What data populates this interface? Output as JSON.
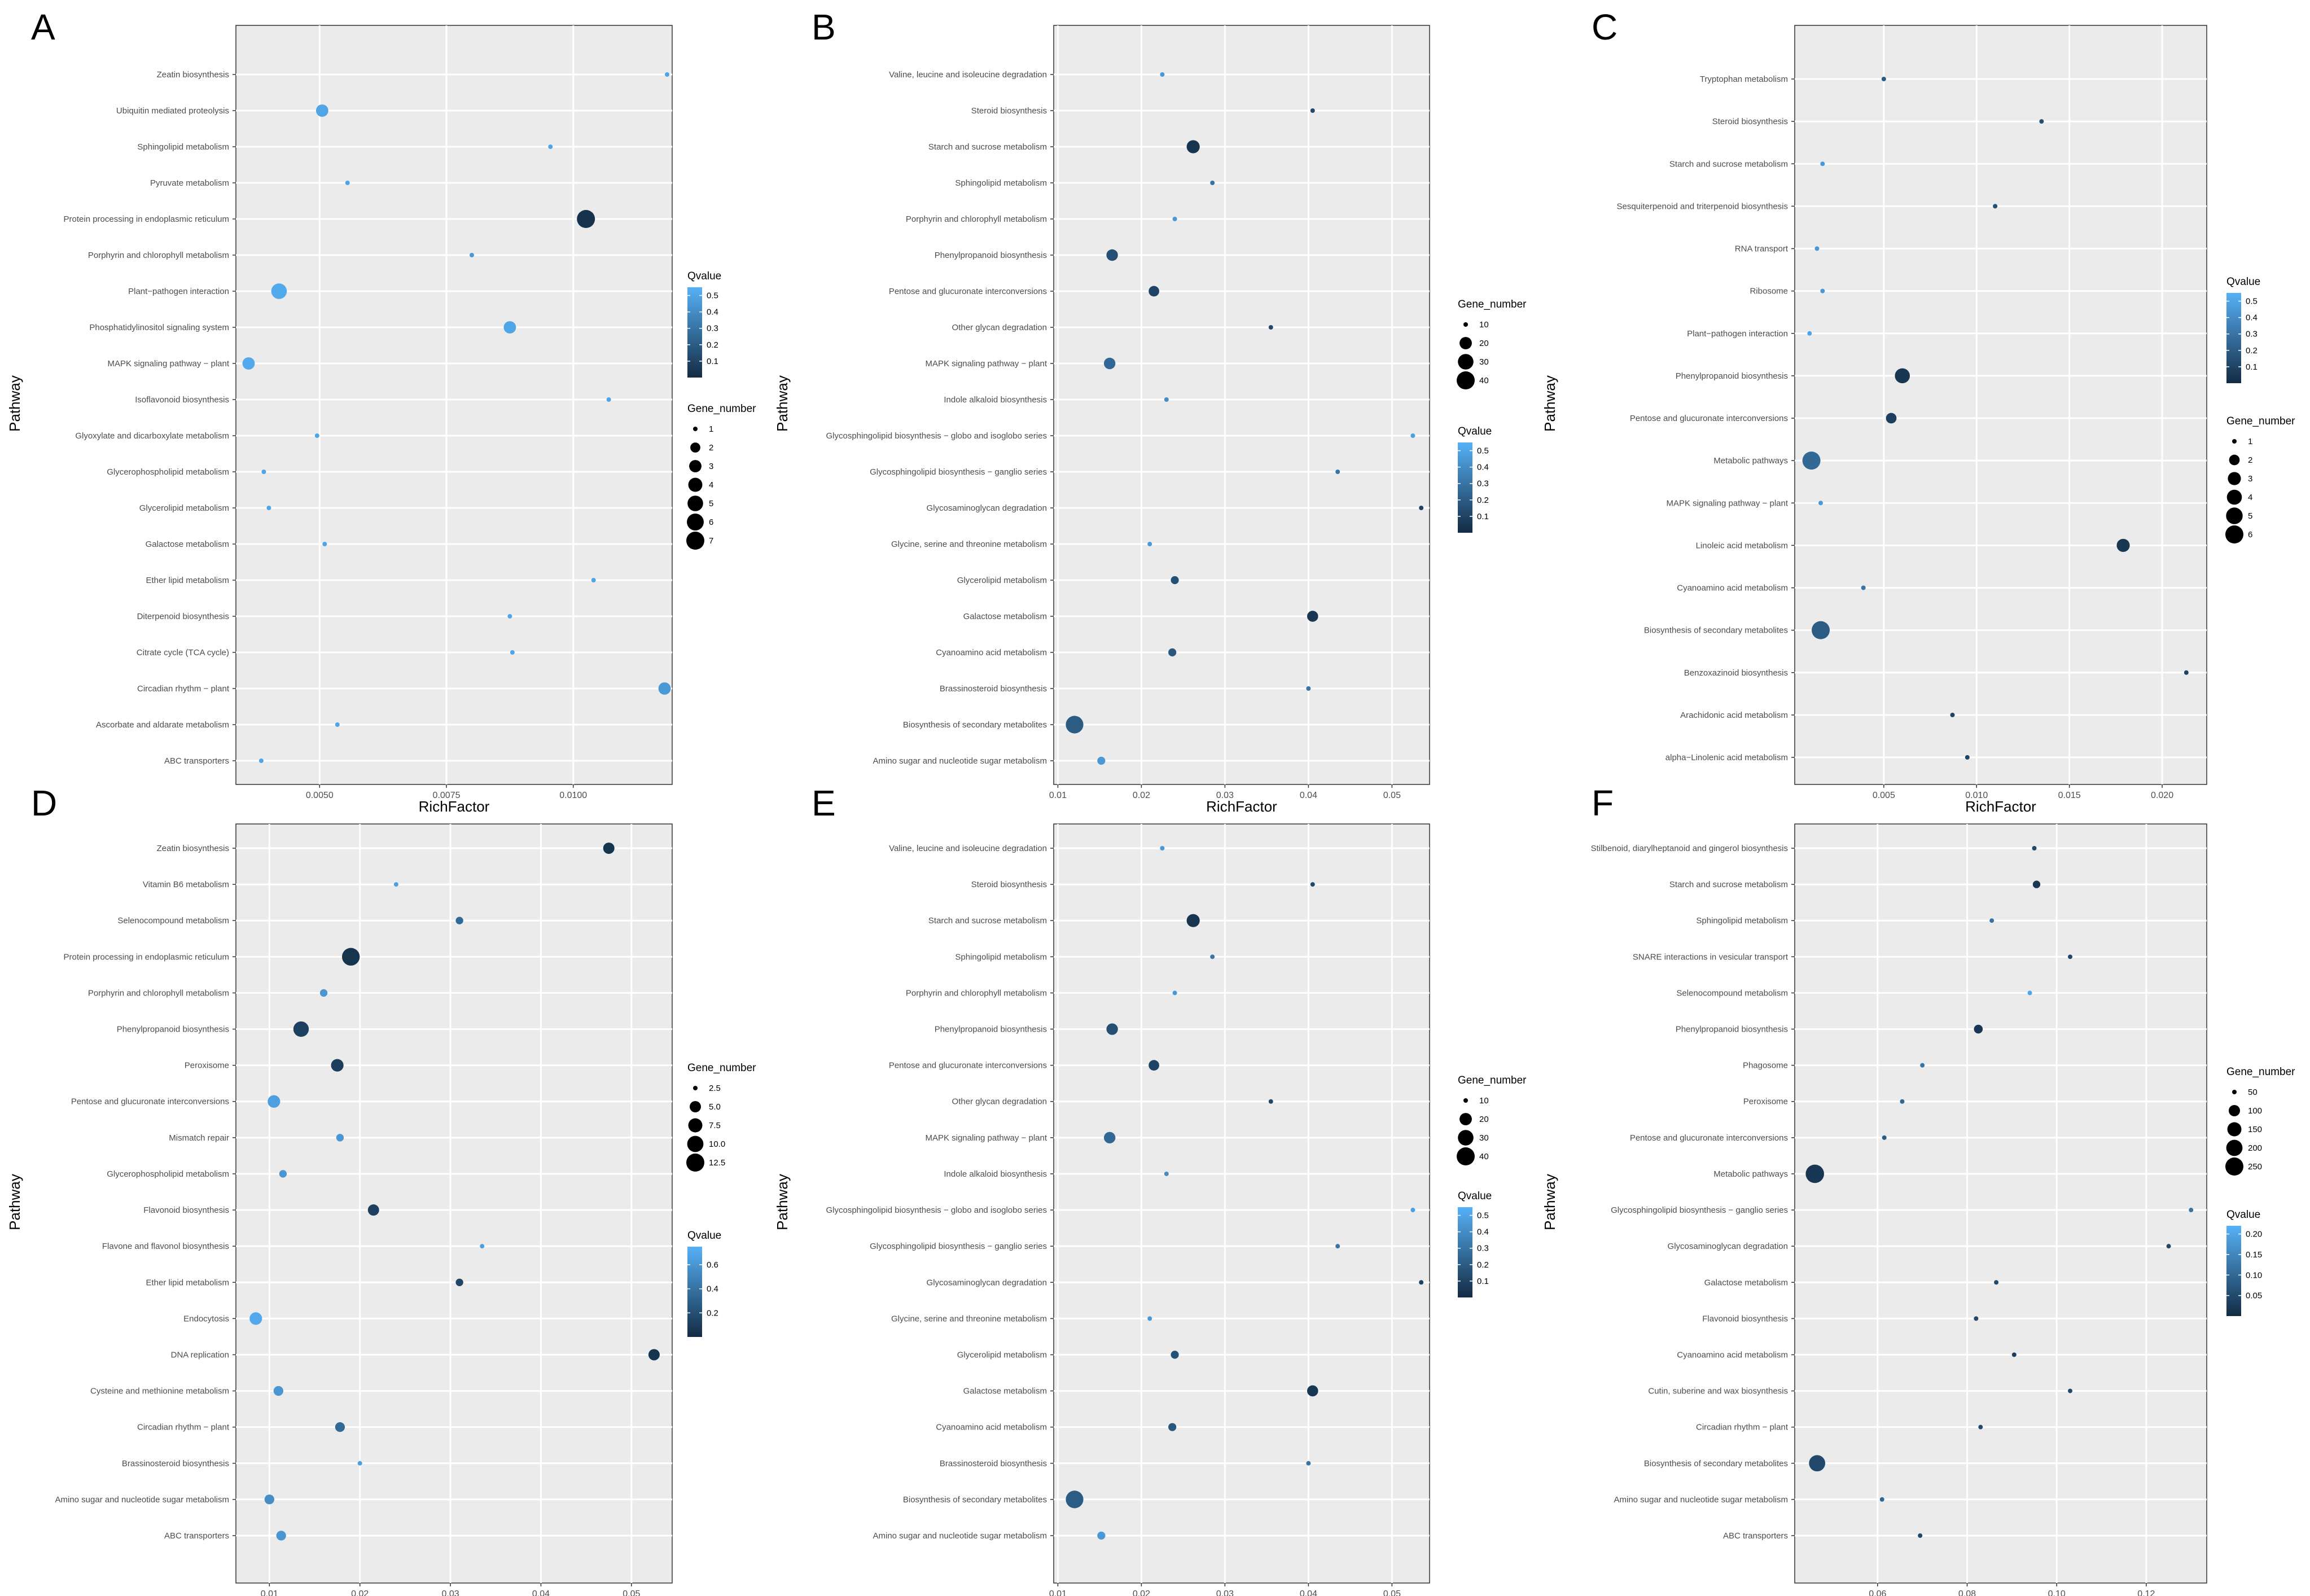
{
  "figure": {
    "panel_count": 6
  },
  "colors": {
    "panel_bg": "#EBEBEB",
    "grid": "#FFFFFF",
    "low": "#132B43",
    "high": "#56B1F7",
    "text": "#000000",
    "tick_text": "#4D4D4D"
  },
  "chart_data": [
    {
      "panel": "A",
      "type": "scatter",
      "xlabel": "RichFactor",
      "ylabel": "Pathway",
      "xlim": [
        0.00335,
        0.01195
      ],
      "xticks": [
        0.005,
        0.0075,
        0.01
      ],
      "xtick_labels": [
        "0.0050",
        "0.0075",
        "0.0100"
      ],
      "categories": [
        "Zeatin biosynthesis",
        "Ubiquitin mediated proteolysis",
        "Sphingolipid metabolism",
        "Pyruvate metabolism",
        "Protein processing in endoplasmic reticulum",
        "Porphyrin and chlorophyll metabolism",
        "Plant−pathogen interaction",
        "Phosphatidylinositol signaling system",
        "MAPK signaling pathway − plant",
        "Isoflavonoid biosynthesis",
        "Glyoxylate and dicarboxylate metabolism",
        "Glycerophospholipid metabolism",
        "Glycerolipid metabolism",
        "Galactose metabolism",
        "Ether lipid metabolism",
        "Diterpenoid biosynthesis",
        "Citrate cycle (TCA cycle)",
        "Circadian rhythm − plant",
        "Ascorbate and aldarate metabolism",
        "ABC transporters"
      ],
      "x": [
        0.01185,
        0.00505,
        0.00955,
        0.00555,
        0.01025,
        0.008,
        0.0042,
        0.00875,
        0.0036,
        0.0107,
        0.00495,
        0.0039,
        0.004,
        0.0051,
        0.0104,
        0.00875,
        0.0088,
        0.0118,
        0.00535,
        0.00385
      ],
      "gene_number": [
        1,
        3,
        1,
        1,
        7,
        1,
        5,
        3,
        3,
        1,
        1,
        1,
        1,
        1,
        1,
        1,
        1,
        3,
        1,
        1
      ],
      "qvalue": [
        0.5,
        0.5,
        0.5,
        0.5,
        0.03,
        0.45,
        0.52,
        0.5,
        0.52,
        0.5,
        0.5,
        0.5,
        0.5,
        0.5,
        0.5,
        0.5,
        0.5,
        0.45,
        0.5,
        0.5
      ],
      "legends": [
        {
          "kind": "color",
          "title": "Qvalue",
          "min": 0.0,
          "max": 0.55,
          "ticks": [
            0.1,
            0.2,
            0.3,
            0.4,
            0.5
          ],
          "tick_labels": [
            "0.1",
            "0.2",
            "0.3",
            "0.4",
            "0.5"
          ]
        },
        {
          "kind": "size",
          "title": "Gene_number",
          "values": [
            1,
            2,
            3,
            4,
            5,
            6,
            7
          ],
          "labels": [
            "1",
            "2",
            "3",
            "4",
            "5",
            "6",
            "7"
          ]
        }
      ]
    },
    {
      "panel": "B",
      "type": "scatter",
      "xlabel": "RichFactor",
      "ylabel": "Pathway",
      "xlim": [
        0.0095,
        0.0545
      ],
      "xticks": [
        0.01,
        0.02,
        0.03,
        0.04,
        0.05
      ],
      "xtick_labels": [
        "0.01",
        "0.02",
        "0.03",
        "0.04",
        "0.05"
      ],
      "categories": [
        "Valine, leucine and isoleucine degradation",
        "Steroid biosynthesis",
        "Starch and sucrose metabolism",
        "Sphingolipid metabolism",
        "Porphyrin and chlorophyll metabolism",
        "Phenylpropanoid biosynthesis",
        "Pentose and glucuronate interconversions",
        "Other glycan degradation",
        "MAPK signaling pathway − plant",
        "Indole alkaloid biosynthesis",
        "Glycosphingolipid biosynthesis − globo and isoglobo series",
        "Glycosphingolipid biosynthesis − ganglio series",
        "Glycosaminoglycan degradation",
        "Glycine, serine and threonine metabolism",
        "Glycerolipid metabolism",
        "Galactose metabolism",
        "Cyanoamino acid metabolism",
        "Brassinosteroid biosynthesis",
        "Biosynthesis of secondary metabolites",
        "Amino sugar and nucleotide sugar metabolism"
      ],
      "x": [
        0.0225,
        0.0405,
        0.0262,
        0.0285,
        0.024,
        0.0165,
        0.0215,
        0.0355,
        0.0162,
        0.023,
        0.0525,
        0.0435,
        0.0535,
        0.021,
        0.024,
        0.0405,
        0.0237,
        0.04,
        0.012,
        0.0152
      ],
      "gene_number": [
        8,
        8,
        22,
        7,
        6,
        18,
        16,
        10,
        18,
        8,
        2,
        4,
        6,
        7,
        12,
        17,
        12,
        7,
        38,
        12
      ],
      "qvalue": [
        0.45,
        0.12,
        0.04,
        0.3,
        0.45,
        0.15,
        0.1,
        0.12,
        0.25,
        0.4,
        0.48,
        0.3,
        0.1,
        0.45,
        0.15,
        0.05,
        0.18,
        0.3,
        0.2,
        0.45
      ],
      "legends": [
        {
          "kind": "size",
          "title": "Gene_number",
          "values": [
            10,
            20,
            30,
            40
          ],
          "labels": [
            "10",
            "20",
            "30",
            "40"
          ]
        },
        {
          "kind": "color",
          "title": "Qvalue",
          "min": 0.0,
          "max": 0.55,
          "ticks": [
            0.1,
            0.2,
            0.3,
            0.4,
            0.5
          ],
          "tick_labels": [
            "0.1",
            "0.2",
            "0.3",
            "0.4",
            "0.5"
          ]
        }
      ]
    },
    {
      "panel": "C",
      "type": "scatter",
      "xlabel": "RichFactor",
      "ylabel": "Pathway",
      "xlim": [
        0.0002,
        0.0224
      ],
      "xticks": [
        0.005,
        0.01,
        0.015,
        0.02
      ],
      "xtick_labels": [
        "0.005",
        "0.010",
        "0.015",
        "0.020"
      ],
      "categories": [
        "Tryptophan metabolism",
        "Steroid biosynthesis",
        "Starch and sucrose metabolism",
        "Sesquiterpenoid and triterpenoid biosynthesis",
        "RNA transport",
        "Ribosome",
        "Plant−pathogen interaction",
        "Phenylpropanoid biosynthesis",
        "Pentose and glucuronate interconversions",
        "Metabolic pathways",
        "MAPK signaling pathway − plant",
        "Linoleic acid metabolism",
        "Cyanoamino acid metabolism",
        "Biosynthesis of secondary metabolites",
        "Benzoxazinoid biosynthesis",
        "Arachidonic acid metabolism",
        "alpha−Linolenic acid metabolism"
      ],
      "x": [
        0.005,
        0.0135,
        0.0017,
        0.011,
        0.0014,
        0.0017,
        0.001,
        0.006,
        0.0054,
        0.0011,
        0.0016,
        0.0179,
        0.0039,
        0.0016,
        0.0213,
        0.0087,
        0.0095
      ],
      "gene_number": [
        1,
        1,
        1,
        1,
        1,
        1,
        1,
        4,
        2,
        6,
        1,
        3,
        1,
        6,
        1,
        1,
        1
      ],
      "qvalue": [
        0.2,
        0.15,
        0.45,
        0.15,
        0.45,
        0.45,
        0.5,
        0.05,
        0.08,
        0.25,
        0.45,
        0.05,
        0.3,
        0.2,
        0.1,
        0.1,
        0.1
      ],
      "legends": [
        {
          "kind": "color",
          "title": "Qvalue",
          "min": 0.0,
          "max": 0.55,
          "ticks": [
            0.1,
            0.2,
            0.3,
            0.4,
            0.5
          ],
          "tick_labels": [
            "0.1",
            "0.2",
            "0.3",
            "0.4",
            "0.5"
          ]
        },
        {
          "kind": "size",
          "title": "Gene_number",
          "values": [
            1,
            2,
            3,
            4,
            5,
            6
          ],
          "labels": [
            "1",
            "2",
            "3",
            "4",
            "5",
            "6"
          ]
        }
      ]
    },
    {
      "panel": "D",
      "type": "scatter",
      "xlabel": "RichFactor",
      "ylabel": "Pathway",
      "xlim": [
        0.0063,
        0.0545
      ],
      "xticks": [
        0.01,
        0.02,
        0.03,
        0.04,
        0.05
      ],
      "xtick_labels": [
        "0.01",
        "0.02",
        "0.03",
        "0.04",
        "0.05"
      ],
      "categories": [
        "Zeatin biosynthesis",
        "Vitamin B6 metabolism",
        "Selenocompound metabolism",
        "Protein processing in endoplasmic reticulum",
        "Porphyrin and chlorophyll metabolism",
        "Phenylpropanoid biosynthesis",
        "Peroxisome",
        "Pentose and glucuronate interconversions",
        "Mismatch repair",
        "Glycerophospholipid metabolism",
        "Flavonoid biosynthesis",
        "Flavone and flavonol biosynthesis",
        "Ether lipid metabolism",
        "Endocytosis",
        "DNA replication",
        "Cysteine and methionine metabolism",
        "Circadian rhythm − plant",
        "Brassinosteroid biosynthesis",
        "Amino sugar and nucleotide sugar metabolism",
        "ABC transporters"
      ],
      "x": [
        0.0475,
        0.024,
        0.031,
        0.019,
        0.016,
        0.0135,
        0.0175,
        0.0105,
        0.0178,
        0.0115,
        0.0215,
        0.0335,
        0.031,
        0.0085,
        0.0525,
        0.011,
        0.0178,
        0.02,
        0.01,
        0.0113
      ],
      "gene_number": [
        5,
        1,
        3,
        12,
        3,
        9,
        6,
        6,
        3,
        3,
        5,
        1,
        3,
        6,
        5,
        4,
        4,
        1,
        4,
        4
      ],
      "qvalue": [
        0.05,
        0.65,
        0.35,
        0.05,
        0.6,
        0.12,
        0.1,
        0.65,
        0.6,
        0.6,
        0.12,
        0.65,
        0.15,
        0.7,
        0.05,
        0.6,
        0.35,
        0.65,
        0.55,
        0.6
      ],
      "legends": [
        {
          "kind": "size",
          "title": "Gene_number",
          "values": [
            2.5,
            5,
            7.5,
            10,
            12.5
          ],
          "labels": [
            "2.5",
            "5.0",
            "7.5",
            "10.0",
            "12.5"
          ]
        },
        {
          "kind": "color",
          "title": "Qvalue",
          "min": 0.0,
          "max": 0.75,
          "ticks": [
            0.2,
            0.4,
            0.6
          ],
          "tick_labels": [
            "0.2",
            "0.4",
            "0.6"
          ]
        }
      ]
    },
    {
      "panel": "E",
      "type": "scatter",
      "xlabel": "RichFactor",
      "ylabel": "Pathway",
      "xlim": [
        0.0095,
        0.0545
      ],
      "xticks": [
        0.01,
        0.02,
        0.03,
        0.04,
        0.05
      ],
      "xtick_labels": [
        "0.01",
        "0.02",
        "0.03",
        "0.04",
        "0.05"
      ],
      "categories": [
        "Valine, leucine and isoleucine degradation",
        "Steroid biosynthesis",
        "Starch and sucrose metabolism",
        "Sphingolipid metabolism",
        "Porphyrin and chlorophyll metabolism",
        "Phenylpropanoid biosynthesis",
        "Pentose and glucuronate interconversions",
        "Other glycan degradation",
        "MAPK signaling pathway − plant",
        "Indole alkaloid biosynthesis",
        "Glycosphingolipid biosynthesis − globo and isoglobo series",
        "Glycosphingolipid biosynthesis − ganglio series",
        "Glycosaminoglycan degradation",
        "Glycine, serine and threonine metabolism",
        "Glycerolipid metabolism",
        "Galactose metabolism",
        "Cyanoamino acid metabolism",
        "Brassinosteroid biosynthesis",
        "Biosynthesis of secondary metabolites",
        "Amino sugar and nucleotide sugar metabolism"
      ],
      "x": [
        0.0225,
        0.0405,
        0.0262,
        0.0285,
        0.024,
        0.0165,
        0.0215,
        0.0355,
        0.0162,
        0.023,
        0.0525,
        0.0435,
        0.0535,
        0.021,
        0.024,
        0.0405,
        0.0237,
        0.04,
        0.012,
        0.0152
      ],
      "gene_number": [
        8,
        8,
        22,
        7,
        6,
        18,
        16,
        10,
        18,
        8,
        2,
        4,
        6,
        7,
        12,
        17,
        12,
        7,
        38,
        12
      ],
      "qvalue": [
        0.45,
        0.12,
        0.04,
        0.3,
        0.45,
        0.15,
        0.1,
        0.12,
        0.25,
        0.4,
        0.48,
        0.3,
        0.1,
        0.45,
        0.15,
        0.05,
        0.18,
        0.3,
        0.2,
        0.45
      ],
      "legends": [
        {
          "kind": "size",
          "title": "Gene_number",
          "values": [
            10,
            20,
            30,
            40
          ],
          "labels": [
            "10",
            "20",
            "30",
            "40"
          ]
        },
        {
          "kind": "color",
          "title": "Qvalue",
          "min": 0.0,
          "max": 0.55,
          "ticks": [
            0.1,
            0.2,
            0.3,
            0.4,
            0.5
          ],
          "tick_labels": [
            "0.1",
            "0.2",
            "0.3",
            "0.4",
            "0.5"
          ]
        }
      ]
    },
    {
      "panel": "F",
      "type": "scatter",
      "xlabel": "RichFactor",
      "ylabel": "Pathway",
      "xlim": [
        0.0415,
        0.1335
      ],
      "xticks": [
        0.06,
        0.08,
        0.1,
        0.12
      ],
      "xtick_labels": [
        "0.06",
        "0.08",
        "0.10",
        "0.12"
      ],
      "categories": [
        "Stilbenoid, diarylheptanoid and gingerol biosynthesis",
        "Starch and sucrose metabolism",
        "Sphingolipid metabolism",
        "SNARE interactions in vesicular transport",
        "Selenocompound metabolism",
        "Phenylpropanoid biosynthesis",
        "Phagosome",
        "Peroxisome",
        "Pentose and glucuronate interconversions",
        "Metabolic pathways",
        "Glycosphingolipid biosynthesis − ganglio series",
        "Glycosaminoglycan degradation",
        "Galactose metabolism",
        "Flavonoid biosynthesis",
        "Cyanoamino acid metabolism",
        "Cutin, suberine and wax biosynthesis",
        "Circadian rhythm − plant",
        "Biosynthesis of secondary metabolites",
        "Amino sugar and nucleotide sugar metabolism",
        "ABC transporters"
      ],
      "x": [
        0.095,
        0.0955,
        0.0855,
        0.103,
        0.094,
        0.0825,
        0.07,
        0.0655,
        0.0615,
        0.046,
        0.13,
        0.125,
        0.0865,
        0.082,
        0.0905,
        0.103,
        0.083,
        0.0465,
        0.061,
        0.0695
      ],
      "gene_number": [
        40,
        60,
        30,
        20,
        10,
        70,
        30,
        50,
        50,
        260,
        10,
        20,
        40,
        40,
        40,
        20,
        30,
        200,
        40,
        30
      ],
      "qvalue": [
        0.05,
        0.02,
        0.12,
        0.05,
        0.2,
        0.02,
        0.12,
        0.1,
        0.08,
        0.02,
        0.12,
        0.05,
        0.05,
        0.05,
        0.03,
        0.05,
        0.05,
        0.05,
        0.1,
        0.05
      ],
      "legends": [
        {
          "kind": "size",
          "title": "Gene_number",
          "values": [
            50,
            100,
            150,
            200,
            250
          ],
          "labels": [
            "50",
            "100",
            "150",
            "200",
            "250"
          ]
        },
        {
          "kind": "color",
          "title": "Qvalue",
          "min": 0.0,
          "max": 0.22,
          "ticks": [
            0.05,
            0.1,
            0.15,
            0.2
          ],
          "tick_labels": [
            "0.05",
            "0.10",
            "0.15",
            "0.20"
          ]
        }
      ]
    }
  ]
}
